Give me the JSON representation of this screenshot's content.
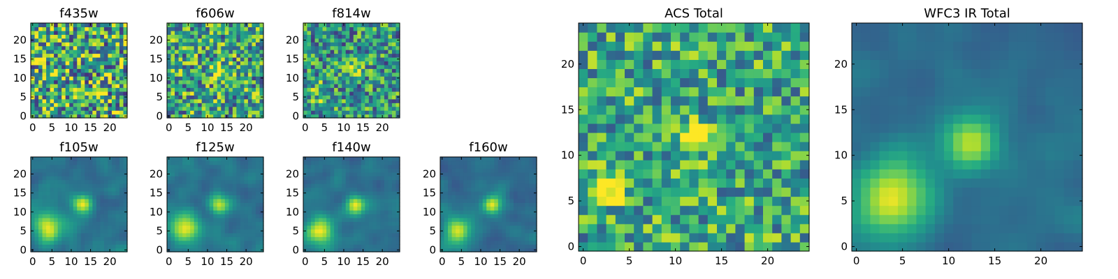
{
  "figure": {
    "colormap": "viridis"
  },
  "chart_data": [
    {
      "type": "heatmap",
      "title": "f435w",
      "n": 25,
      "xticks": [
        0,
        5,
        10,
        15,
        20
      ],
      "yticks": [
        0,
        5,
        10,
        15,
        20
      ],
      "noise": 0.46,
      "base": 0.6,
      "blobs": []
    },
    {
      "type": "heatmap",
      "title": "f606w",
      "n": 25,
      "xticks": [
        0,
        5,
        10,
        15,
        20
      ],
      "yticks": [
        0,
        5,
        10,
        15,
        20
      ],
      "noise": 0.4,
      "base": 0.58,
      "blobs": [
        {
          "x": 13,
          "y": 12,
          "sigma": 1.2,
          "amp": 0.35
        }
      ]
    },
    {
      "type": "heatmap",
      "title": "f814w",
      "n": 25,
      "xticks": [
        0,
        5,
        10,
        15,
        20
      ],
      "yticks": [
        0,
        5,
        10,
        15,
        20
      ],
      "noise": 0.36,
      "base": 0.52,
      "blobs": [
        {
          "x": 13,
          "y": 12,
          "sigma": 1.3,
          "amp": 0.45
        },
        {
          "x": 4,
          "y": 6,
          "sigma": 2.2,
          "amp": 0.22
        }
      ]
    },
    {
      "type": "heatmap",
      "title": "f105w",
      "n": 25,
      "xticks": [
        0,
        5,
        10,
        15,
        20
      ],
      "yticks": [
        0,
        5,
        10,
        15,
        20
      ],
      "noise": 0.12,
      "base": 0.38,
      "smooth": true,
      "blobs": [
        {
          "x": 13,
          "y": 12,
          "sigma": 1.8,
          "amp": 0.6
        },
        {
          "x": 4,
          "y": 6,
          "sigma": 2.8,
          "amp": 0.55
        }
      ]
    },
    {
      "type": "heatmap",
      "title": "f125w",
      "n": 25,
      "xticks": [
        0,
        5,
        10,
        15,
        20
      ],
      "yticks": [
        0,
        5,
        10,
        15,
        20
      ],
      "noise": 0.12,
      "base": 0.38,
      "smooth": true,
      "blobs": [
        {
          "x": 13,
          "y": 12,
          "sigma": 1.8,
          "amp": 0.58
        },
        {
          "x": 4,
          "y": 6,
          "sigma": 2.8,
          "amp": 0.58
        }
      ]
    },
    {
      "type": "heatmap",
      "title": "f140w",
      "n": 25,
      "xticks": [
        0,
        5,
        10,
        15,
        20
      ],
      "yticks": [
        0,
        5,
        10,
        15,
        20
      ],
      "noise": 0.12,
      "base": 0.38,
      "smooth": true,
      "blobs": [
        {
          "x": 13,
          "y": 12,
          "sigma": 1.7,
          "amp": 0.6
        },
        {
          "x": 4,
          "y": 5,
          "sigma": 2.6,
          "amp": 0.56
        }
      ]
    },
    {
      "type": "heatmap",
      "title": "f160w",
      "n": 25,
      "xticks": [
        0,
        5,
        10,
        15,
        20
      ],
      "yticks": [
        0,
        5,
        10,
        15,
        20
      ],
      "noise": 0.1,
      "base": 0.36,
      "smooth": true,
      "blobs": [
        {
          "x": 13,
          "y": 12,
          "sigma": 1.7,
          "amp": 0.62
        },
        {
          "x": 4,
          "y": 5,
          "sigma": 2.6,
          "amp": 0.6
        }
      ]
    },
    {
      "type": "heatmap",
      "title": "ACS Total",
      "n": 25,
      "xticks": [
        0,
        5,
        10,
        15,
        20
      ],
      "yticks": [
        0,
        5,
        10,
        15,
        20
      ],
      "noise": 0.32,
      "base": 0.6,
      "blobs": [
        {
          "x": 12,
          "y": 12,
          "sigma": 1.3,
          "amp": 0.4
        },
        {
          "x": 3,
          "y": 7,
          "sigma": 1.8,
          "amp": 0.3
        }
      ]
    },
    {
      "type": "heatmap",
      "title": "WFC3 IR Total",
      "n": 25,
      "xticks": [
        0,
        5,
        10,
        15,
        20
      ],
      "yticks": [
        0,
        5,
        10,
        15,
        20
      ],
      "noise": 0.08,
      "base": 0.36,
      "smooth": true,
      "blobs": [
        {
          "x": 12.5,
          "y": 11.5,
          "sigma": 2.0,
          "amp": 0.58
        },
        {
          "x": 4,
          "y": 5.5,
          "sigma": 3.0,
          "amp": 0.6
        }
      ]
    }
  ]
}
